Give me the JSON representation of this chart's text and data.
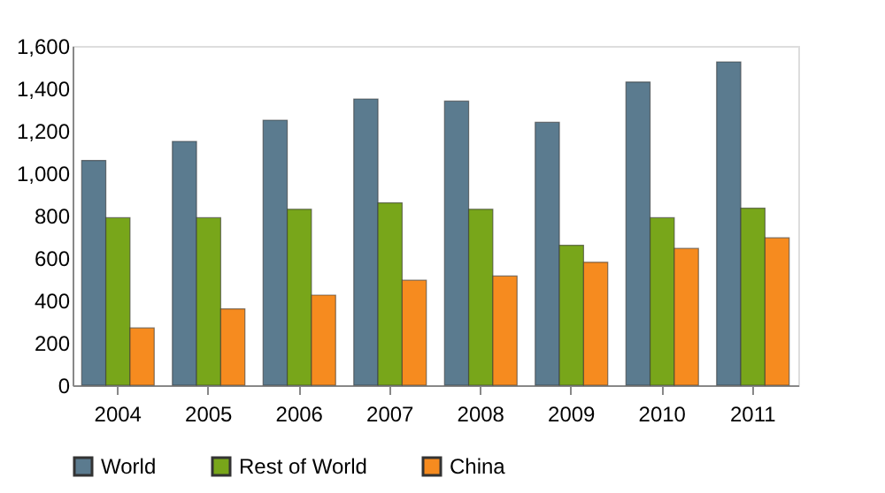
{
  "chart_data": {
    "type": "bar",
    "categories": [
      "2004",
      "2005",
      "2006",
      "2007",
      "2008",
      "2009",
      "2010",
      "2011"
    ],
    "series": [
      {
        "name": "World",
        "color": "#5b7b8f",
        "values": [
          1060,
          1150,
          1250,
          1350,
          1340,
          1240,
          1430,
          1525
        ]
      },
      {
        "name": "Rest of World",
        "color": "#78a61a",
        "values": [
          790,
          790,
          830,
          860,
          830,
          660,
          790,
          835
        ]
      },
      {
        "name": "China",
        "color": "#f68b1f",
        "values": [
          270,
          360,
          425,
          495,
          515,
          580,
          645,
          695
        ]
      }
    ],
    "ylim": [
      0,
      1600
    ],
    "yticks": [
      {
        "value": 0,
        "label": "0"
      },
      {
        "value": 200,
        "label": "200"
      },
      {
        "value": 400,
        "label": "400"
      },
      {
        "value": 600,
        "label": "600"
      },
      {
        "value": 800,
        "label": "800"
      },
      {
        "value": 1000,
        "label": "1,000"
      },
      {
        "value": 1200,
        "label": "1,200"
      },
      {
        "value": 1400,
        "label": "1,400"
      },
      {
        "value": 1600,
        "label": "1,600"
      }
    ],
    "grid": false,
    "legend": "bottom"
  }
}
